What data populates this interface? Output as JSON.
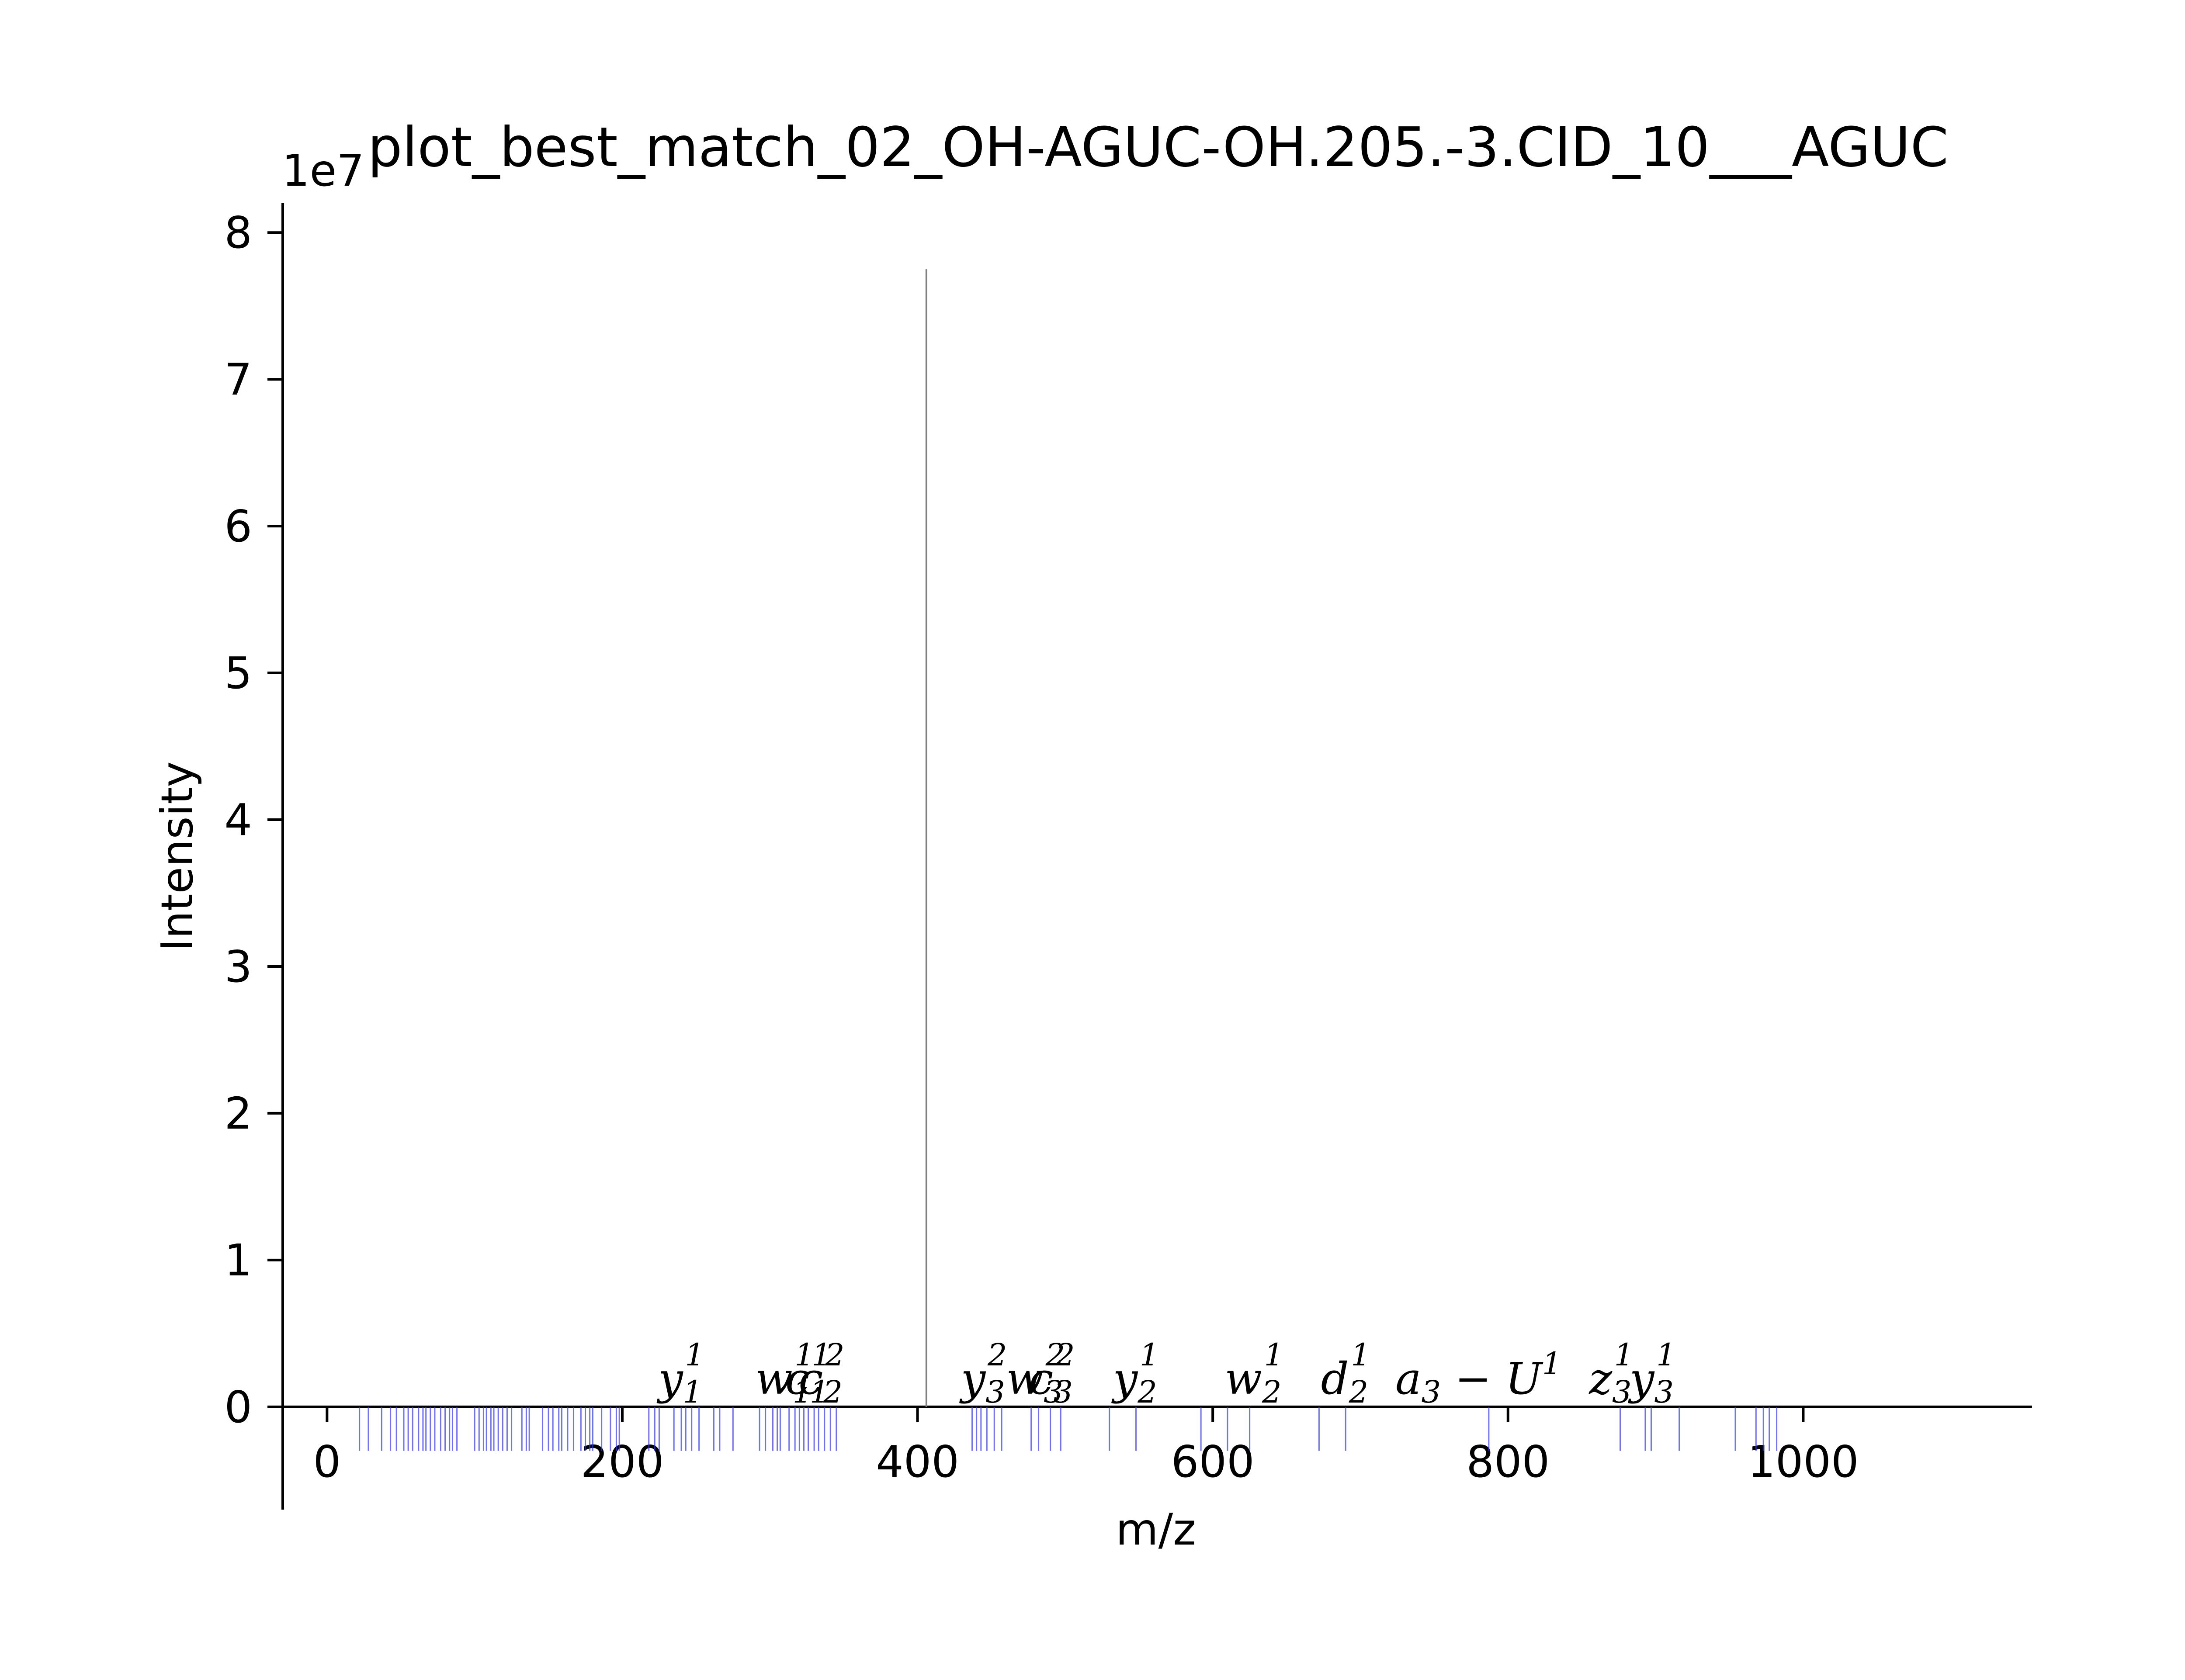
{
  "chart_data": {
    "type": "bar",
    "title": "plot_best_match_02_OH-AGUC-OH.205.-3.CID_10___AGUC",
    "xlabel": "m/z",
    "ylabel": "Intensity",
    "y_scale_label": "1e7",
    "xlim": [
      -30,
      1155
    ],
    "ylim": [
      -0.7,
      8.2
    ],
    "x_ticks": [
      0,
      200,
      400,
      600,
      800,
      1000
    ],
    "y_ticks": [
      0,
      1,
      2,
      3,
      4,
      5,
      6,
      7,
      8
    ],
    "grid": false,
    "legend": "none",
    "colors": {
      "experimental_peak": "#808080",
      "theoretical_peak": "#3333ff",
      "axis": "#000000"
    },
    "experimental_peaks": [
      {
        "mz": 406,
        "intensity": 7.75
      }
    ],
    "theoretical_peaks": {
      "depth": -0.3,
      "mz": [
        22,
        28,
        37,
        43,
        47,
        52,
        55,
        58,
        62,
        65,
        67,
        70,
        73,
        77,
        80,
        83,
        85,
        88,
        100,
        103,
        106,
        108,
        111,
        113,
        116,
        119,
        122,
        125,
        132,
        135,
        137,
        146,
        150,
        153,
        157,
        159,
        163,
        167,
        172,
        175,
        178,
        180,
        186,
        192,
        196,
        198,
        218,
        222,
        225,
        235,
        240,
        243,
        247,
        252,
        262,
        266,
        275,
        293,
        297,
        302,
        305,
        307,
        313,
        317,
        320,
        323,
        326,
        330,
        333,
        337,
        341,
        345,
        437,
        440,
        443,
        447,
        452,
        457,
        477,
        482,
        490,
        497,
        530,
        548,
        592,
        610,
        625,
        672,
        690,
        787,
        876,
        893,
        897,
        916,
        954,
        968,
        973,
        977,
        982
      ]
    },
    "annotations": [
      {
        "mz": 240,
        "base": "y",
        "sub": "1",
        "sup": "1"
      },
      {
        "mz": 310,
        "base": "w",
        "sub": "1",
        "sup": "1"
      },
      {
        "mz": 326,
        "base": "c",
        "sub": "1",
        "sup": "1"
      },
      {
        "mz": 335,
        "base": "c",
        "sub": "2",
        "sup": "2"
      },
      {
        "mz": 445,
        "base": "y",
        "sub": "3",
        "sup": "2"
      },
      {
        "mz": 480,
        "base": "w",
        "sub": "3",
        "sup": "2"
      },
      {
        "mz": 491,
        "base": "c",
        "sub": "3",
        "sup": "2"
      },
      {
        "mz": 548,
        "base": "y",
        "sub": "2",
        "sup": "1"
      },
      {
        "mz": 628,
        "base": "w",
        "sub": "2",
        "sup": "1"
      },
      {
        "mz": 690,
        "base": "d",
        "sub": "2",
        "sup": "1"
      },
      {
        "mz": 780,
        "base": "a",
        "sub": "3",
        "extra": " − U",
        "sup": "1"
      },
      {
        "mz": 870,
        "base": "z",
        "sub": "3",
        "sup": "1"
      },
      {
        "mz": 898,
        "base": "y",
        "sub": "3",
        "sup": "1"
      }
    ]
  }
}
